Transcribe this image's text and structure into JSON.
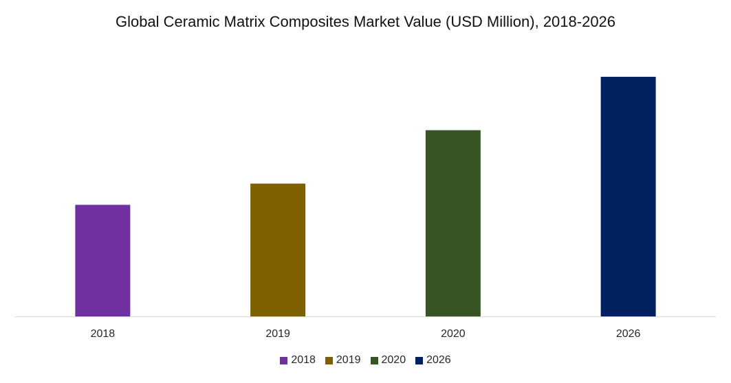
{
  "chart_data": {
    "type": "bar",
    "title": "Global Ceramic Matrix Composites Market Value (USD Million), 2018-2026",
    "xlabel": "",
    "ylabel": "",
    "categories": [
      "2018",
      "2019",
      "2020",
      "2026"
    ],
    "values": [
      163,
      194,
      272,
      350
    ],
    "ylim": [
      0,
      400
    ],
    "colors": [
      "#7030A0",
      "#7F6000",
      "#375623",
      "#002060"
    ],
    "legend": {
      "position": "bottom",
      "entries": [
        "2018",
        "2019",
        "2020",
        "2026"
      ]
    },
    "grid": false,
    "y_axis_visible": false
  }
}
